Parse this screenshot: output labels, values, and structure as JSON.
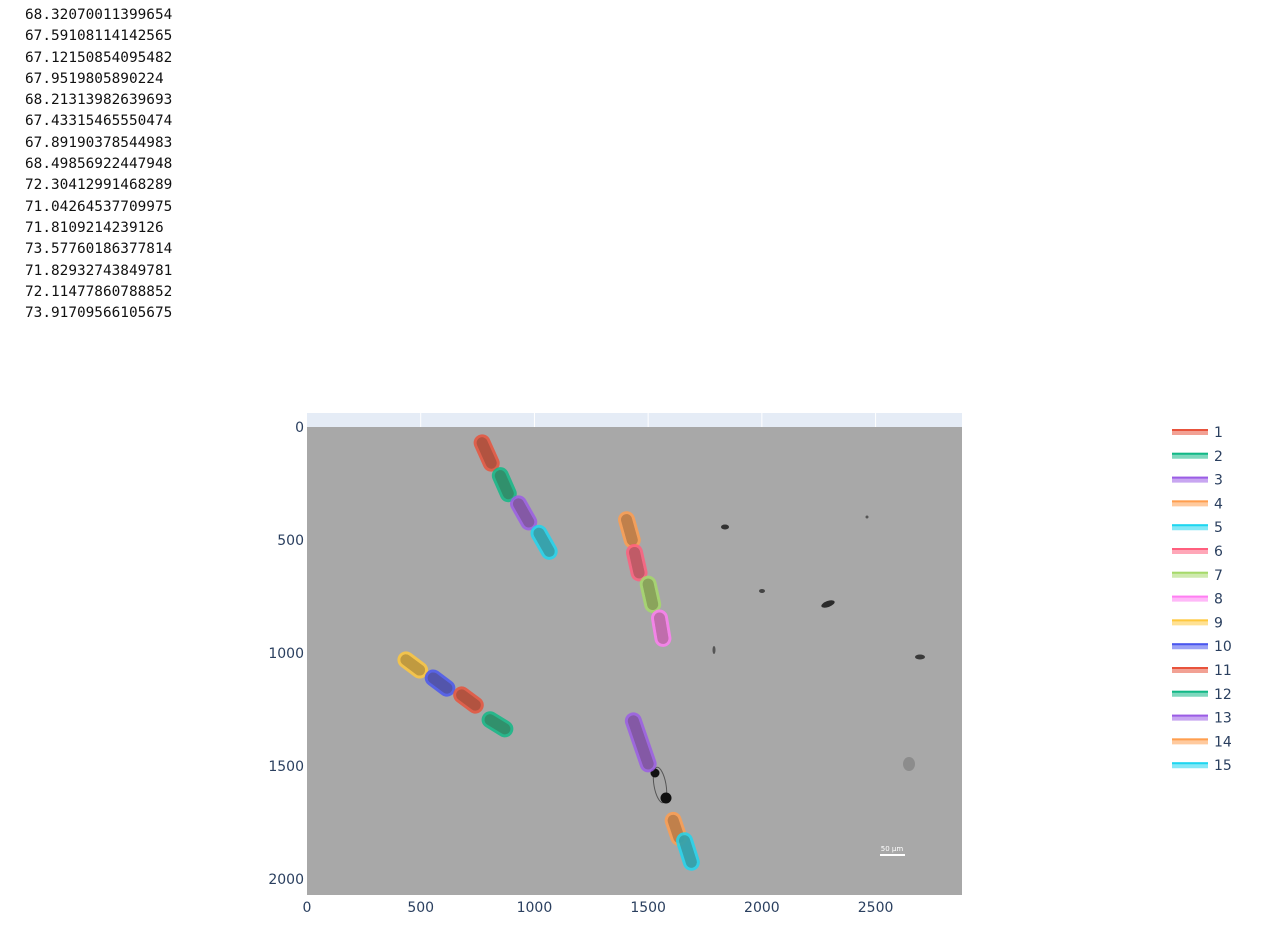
{
  "output_lines": [
    "68.32070011399654",
    "67.59108114142565",
    "67.12150854095482",
    "67.9519805890224",
    "68.21313982639693",
    "67.43315465550474",
    "67.89190378544983",
    "68.49856922447948",
    "72.30412991468289",
    "71.04264537709975",
    "71.8109214239126",
    "73.57760186377814",
    "71.82932743849781",
    "72.11477860788852",
    "73.91709566105675"
  ],
  "scale_bar_label": "50 μm",
  "chart_data": {
    "type": "image-overlay",
    "title": "",
    "xlabel": "",
    "ylabel": "",
    "xlim": [
      0,
      2880
    ],
    "ylim": [
      2070,
      0
    ],
    "xticks": [
      0,
      500,
      1000,
      1500,
      2000,
      2500
    ],
    "yticks": [
      0,
      500,
      1000,
      1500,
      2000
    ],
    "image_background": "#a8a8a8",
    "legend_position": "right",
    "series": [
      {
        "name": "1",
        "color": "#e8533c",
        "start": [
          770,
          70
        ],
        "end": [
          810,
          160
        ]
      },
      {
        "name": "2",
        "color": "#12b886",
        "start": [
          850,
          215
        ],
        "end": [
          885,
          295
        ]
      },
      {
        "name": "3",
        "color": "#9b5de5",
        "start": [
          930,
          340
        ],
        "end": [
          975,
          420
        ]
      },
      {
        "name": "4",
        "color": "#ff9e4f",
        "start": [
          1405,
          410
        ],
        "end": [
          1430,
          500
        ]
      },
      {
        "name": "5",
        "color": "#1ed6f0",
        "start": [
          1020,
          470
        ],
        "end": [
          1065,
          550
        ]
      },
      {
        "name": "6",
        "color": "#ff5f7e",
        "start": [
          1440,
          555
        ],
        "end": [
          1460,
          645
        ]
      },
      {
        "name": "7",
        "color": "#a6d96a",
        "start": [
          1500,
          695
        ],
        "end": [
          1520,
          785
        ]
      },
      {
        "name": "8",
        "color": "#ff7ef2",
        "start": [
          1550,
          845
        ],
        "end": [
          1565,
          935
        ]
      },
      {
        "name": "9",
        "color": "#ffc83d",
        "start": [
          435,
          1030
        ],
        "end": [
          495,
          1075
        ]
      },
      {
        "name": "10",
        "color": "#4a57ee",
        "start": [
          555,
          1110
        ],
        "end": [
          615,
          1155
        ]
      },
      {
        "name": "11",
        "color": "#e8533c",
        "start": [
          680,
          1185
        ],
        "end": [
          740,
          1230
        ]
      },
      {
        "name": "12",
        "color": "#12b886",
        "start": [
          805,
          1295
        ],
        "end": [
          870,
          1335
        ]
      },
      {
        "name": "13",
        "color": "#9b5de5",
        "start": [
          1435,
          1300
        ],
        "end": [
          1500,
          1490
        ]
      },
      {
        "name": "14",
        "color": "#ff9e4f",
        "start": [
          1610,
          1740
        ],
        "end": [
          1635,
          1815
        ]
      },
      {
        "name": "15",
        "color": "#1ed6f0",
        "start": [
          1660,
          1830
        ],
        "end": [
          1690,
          1925
        ]
      }
    ]
  }
}
